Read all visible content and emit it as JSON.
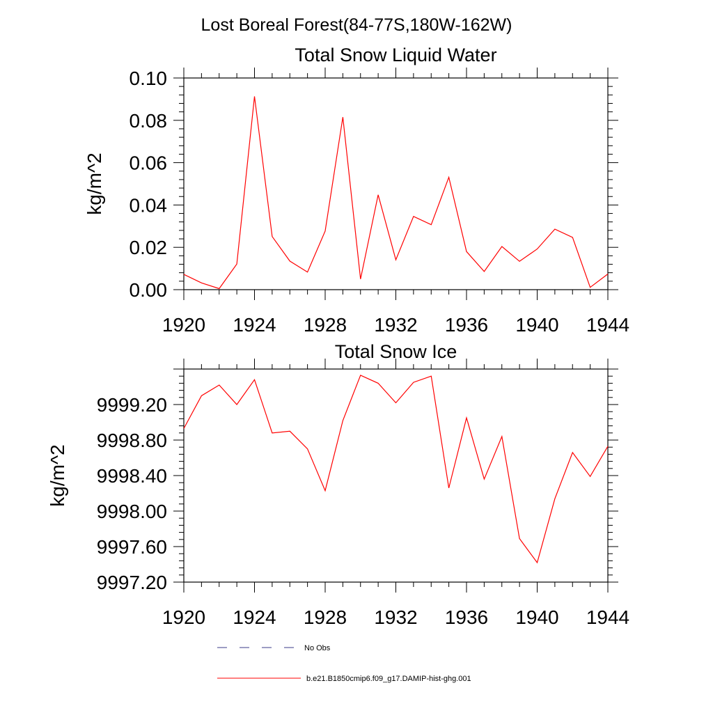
{
  "figure": {
    "main_title": "Lost Boreal Forest(84-77S,180W-162W)"
  },
  "legend": {
    "no_obs_label": "No Obs",
    "model_label": "b.e21.B1850cmip6.f09_g17.DAMIP-hist-ghg.001",
    "no_obs_color": "#3b3b8a",
    "model_color": "#ff0000"
  },
  "chart_data": [
    {
      "type": "line",
      "title": "Total Snow Liquid Water",
      "xlabel": "",
      "ylabel": "kg/m^2",
      "xlim": [
        1920,
        1944
      ],
      "ylim": [
        0.0,
        0.1
      ],
      "x_ticks": [
        1920,
        1924,
        1928,
        1932,
        1936,
        1940,
        1944
      ],
      "x_tick_labels": [
        "1920",
        "1924",
        "1928",
        "1932",
        "1936",
        "1940",
        "1944"
      ],
      "y_ticks": [
        0.0,
        0.02,
        0.04,
        0.06,
        0.08,
        0.1
      ],
      "y_tick_labels": [
        "0.00",
        "0.02",
        "0.04",
        "0.06",
        "0.08",
        "0.10"
      ],
      "grid": false,
      "series": [
        {
          "name": "b.e21.B1850cmip6.f09_g17.DAMIP-hist-ghg.001",
          "color": "#ff0000",
          "x": [
            1920,
            1921,
            1922,
            1923,
            1924,
            1925,
            1926,
            1927,
            1928,
            1929,
            1930,
            1931,
            1932,
            1933,
            1934,
            1935,
            1936,
            1937,
            1938,
            1939,
            1940,
            1941,
            1942,
            1943,
            1944
          ],
          "y": [
            0.0072,
            0.0032,
            0.0005,
            0.0121,
            0.0913,
            0.0251,
            0.0135,
            0.0083,
            0.0277,
            0.0815,
            0.005,
            0.0448,
            0.0141,
            0.0346,
            0.0307,
            0.0531,
            0.018,
            0.0086,
            0.0204,
            0.0134,
            0.0192,
            0.0286,
            0.0247,
            0.0011,
            0.0074
          ]
        }
      ]
    },
    {
      "type": "line",
      "title": "Total Snow Ice",
      "xlabel": "",
      "ylabel": "kg/m^2",
      "xlim": [
        1920,
        1944
      ],
      "ylim": [
        9997.2,
        9999.6
      ],
      "x_ticks": [
        1920,
        1924,
        1928,
        1932,
        1936,
        1940,
        1944
      ],
      "x_tick_labels": [
        "1920",
        "1924",
        "1928",
        "1932",
        "1936",
        "1940",
        "1944"
      ],
      "y_ticks": [
        9997.2,
        9997.6,
        9998.0,
        9998.4,
        9998.8,
        9999.2
      ],
      "y_tick_labels": [
        "9997.20",
        "9997.60",
        "9998.00",
        "9998.40",
        "9998.80",
        "9999.20"
      ],
      "grid": false,
      "series": [
        {
          "name": "b.e21.B1850cmip6.f09_g17.DAMIP-hist-ghg.001",
          "color": "#ff0000",
          "x": [
            1920,
            1921,
            1922,
            1923,
            1924,
            1925,
            1926,
            1927,
            1928,
            1929,
            1930,
            1931,
            1932,
            1933,
            1934,
            1935,
            1936,
            1937,
            1938,
            1939,
            1940,
            1941,
            1942,
            1943,
            1944
          ],
          "y": [
            9998.93,
            9999.3,
            9999.42,
            9999.2,
            9999.48,
            9998.88,
            9998.9,
            9998.7,
            9998.23,
            9999.02,
            9999.53,
            9999.44,
            9999.22,
            9999.45,
            9999.52,
            9998.26,
            9999.05,
            9998.36,
            9998.84,
            9997.69,
            9997.42,
            9998.14,
            9998.66,
            9998.39,
            9998.73
          ]
        }
      ]
    }
  ]
}
